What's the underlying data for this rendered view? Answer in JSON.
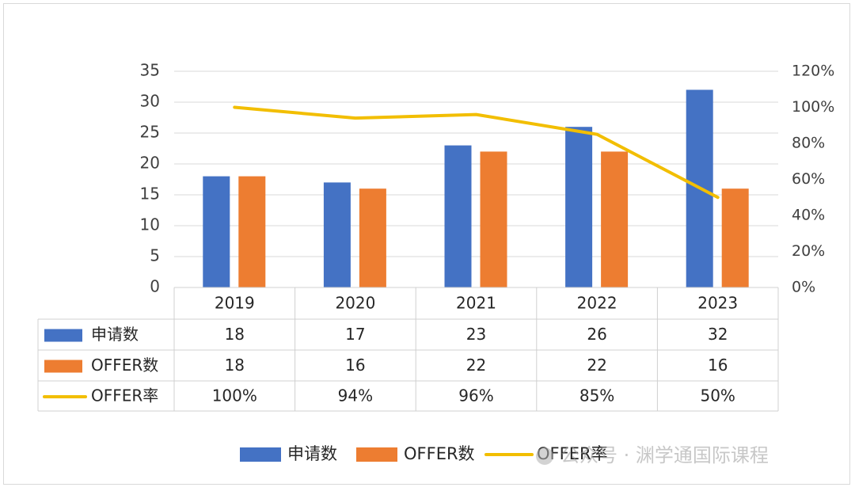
{
  "chart_data": {
    "type": "bar",
    "categories": [
      "2019",
      "2020",
      "2021",
      "2022",
      "2023"
    ],
    "series": [
      {
        "name": "申请数",
        "kind": "bar",
        "axis": "left",
        "color": "#4472C4",
        "values": [
          18,
          17,
          23,
          26,
          32
        ]
      },
      {
        "name": "OFFER数",
        "kind": "bar",
        "axis": "left",
        "color": "#ED7D31",
        "values": [
          18,
          16,
          22,
          22,
          16
        ]
      },
      {
        "name": "OFFER率",
        "kind": "line",
        "axis": "right",
        "color": "#F2BE00",
        "values": [
          1.0,
          0.94,
          0.96,
          0.85,
          0.5
        ]
      }
    ],
    "data_table": {
      "rows": [
        {
          "label": "申请数",
          "cells": [
            "18",
            "17",
            "23",
            "26",
            "32"
          ]
        },
        {
          "label": "OFFER数",
          "cells": [
            "18",
            "16",
            "22",
            "22",
            "16"
          ]
        },
        {
          "label": "OFFER率",
          "cells": [
            "100%",
            "94%",
            "96%",
            "85%",
            "50%"
          ]
        }
      ]
    },
    "y_left": {
      "ylim": [
        0,
        35
      ],
      "ticks": [
        "0",
        "5",
        "10",
        "15",
        "20",
        "25",
        "30",
        "35"
      ]
    },
    "y_right": {
      "ylim": [
        0,
        1.2
      ],
      "ticks": [
        "0%",
        "20%",
        "40%",
        "60%",
        "80%",
        "100%",
        "120%"
      ]
    },
    "grid": true,
    "legend_position": "bottom-right",
    "legend": [
      "申请数",
      "OFFER数",
      "OFFER率"
    ]
  },
  "watermark": "公众号 · 渊学通国际课程"
}
